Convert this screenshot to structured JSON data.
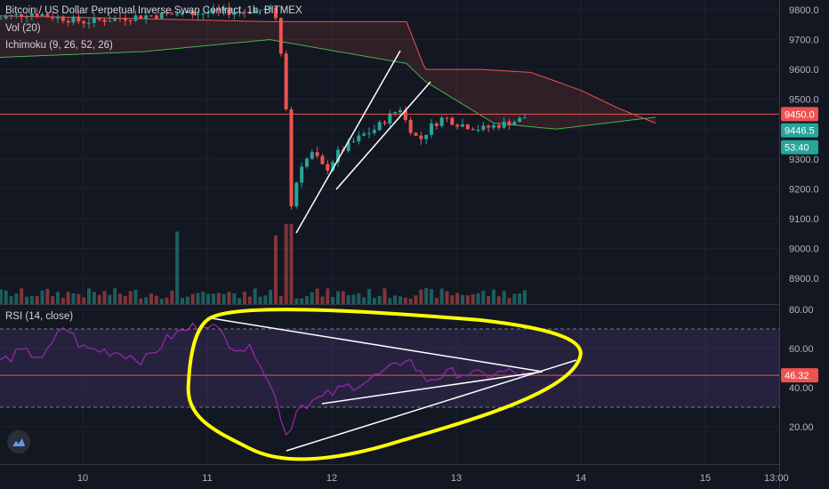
{
  "header": {
    "symbol_line": "Bitcoin / US Dollar Perpetual Inverse Swap Contract, 1h, BITMEX",
    "vol_line": "Vol (20)",
    "ichimoku_line": "Ichimoku (9, 26, 52, 26)"
  },
  "rsi_header": "RSI (14, close)",
  "colors": {
    "background": "#131722",
    "bull": "#26a69a",
    "bear": "#ef5350",
    "rsi_line": "#9c27b0",
    "rsi_band": "#3b1e4a",
    "ichimoku_span_a": "#4caf50",
    "ichimoku_span_b": "#ef5350",
    "annotation": "#ffff00",
    "trendline": "#ffffff",
    "last_price_box": "#ef5350",
    "current_price_box": "#26a69a"
  },
  "price_badges": {
    "last": "9450.0",
    "current": "9446.5",
    "countdown": "53:40"
  },
  "rsi_badge": "46.32",
  "chart_data": [
    {
      "type": "candlestick",
      "title": "Bitcoin / US Dollar Perpetual Inverse Swap Contract, 1h, BITMEX",
      "xlabel": "",
      "ylabel": "",
      "x_ticks": [
        "10",
        "11",
        "12",
        "13",
        "14",
        "15",
        "13:00"
      ],
      "y_ticks": [
        "9800.0",
        "9700.0",
        "9600.0",
        "9500.0",
        "9400.0",
        "9300.0",
        "9200.0",
        "9100.0",
        "9000.0",
        "8900.0"
      ],
      "ylim": [
        8850,
        9850
      ],
      "last_price": 9450.0,
      "current_price": 9446.5,
      "close_path": [
        {
          "t": 11.55,
          "v": 9780
        },
        {
          "t": 11.6,
          "v": 9640
        },
        {
          "t": 11.63,
          "v": 9520
        },
        {
          "t": 11.66,
          "v": 9060
        },
        {
          "t": 11.68,
          "v": 9160
        },
        {
          "t": 11.75,
          "v": 9280
        },
        {
          "t": 11.85,
          "v": 9320
        },
        {
          "t": 11.95,
          "v": 9260
        },
        {
          "t": 12.05,
          "v": 9320
        },
        {
          "t": 12.15,
          "v": 9350
        },
        {
          "t": 12.25,
          "v": 9380
        },
        {
          "t": 12.35,
          "v": 9400
        },
        {
          "t": 12.45,
          "v": 9440
        },
        {
          "t": 12.55,
          "v": 9470
        },
        {
          "t": 12.6,
          "v": 9420
        },
        {
          "t": 12.7,
          "v": 9360
        },
        {
          "t": 12.8,
          "v": 9410
        },
        {
          "t": 12.9,
          "v": 9440
        },
        {
          "t": 13.0,
          "v": 9420
        },
        {
          "t": 13.1,
          "v": 9410
        },
        {
          "t": 13.2,
          "v": 9400
        },
        {
          "t": 13.3,
          "v": 9410
        },
        {
          "t": 13.4,
          "v": 9420
        },
        {
          "t": 13.5,
          "v": 9430
        },
        {
          "t": 13.58,
          "v": 9446.5
        }
      ],
      "ichimoku_span_a": [
        {
          "t": 9.3,
          "v": 9640
        },
        {
          "t": 10.5,
          "v": 9660
        },
        {
          "t": 11.0,
          "v": 9680
        },
        {
          "t": 11.5,
          "v": 9700
        },
        {
          "t": 12.6,
          "v": 9620
        },
        {
          "t": 12.75,
          "v": 9560
        },
        {
          "t": 13.3,
          "v": 9420
        },
        {
          "t": 13.8,
          "v": 9400
        },
        {
          "t": 14.6,
          "v": 9440
        }
      ],
      "ichimoku_span_b": [
        {
          "t": 9.3,
          "v": 9780
        },
        {
          "t": 10.5,
          "v": 9770
        },
        {
          "t": 11.5,
          "v": 9760
        },
        {
          "t": 12.6,
          "v": 9760
        },
        {
          "t": 12.75,
          "v": 9600
        },
        {
          "t": 13.2,
          "v": 9600
        },
        {
          "t": 13.6,
          "v": 9590
        },
        {
          "t": 14.0,
          "v": 9530
        },
        {
          "t": 14.3,
          "v": 9470
        },
        {
          "t": 14.6,
          "v": 9420
        }
      ],
      "volume_spike_at": [
        10.75,
        11.55,
        11.65
      ]
    },
    {
      "type": "line",
      "title": "RSI (14, close)",
      "x_ticks": [
        "10",
        "11",
        "12",
        "13",
        "14",
        "15",
        "13:00"
      ],
      "y_ticks": [
        "80.00",
        "60.00",
        "40.00",
        "20.00"
      ],
      "ylim": [
        10,
        85
      ],
      "bands": [
        30,
        70
      ],
      "last_value": 46.32,
      "series": [
        {
          "values": [
            {
              "t": 9.3,
              "v": 52
            },
            {
              "t": 9.5,
              "v": 58
            },
            {
              "t": 9.7,
              "v": 56
            },
            {
              "t": 9.85,
              "v": 72
            },
            {
              "t": 10.0,
              "v": 60
            },
            {
              "t": 10.3,
              "v": 58
            },
            {
              "t": 10.5,
              "v": 54
            },
            {
              "t": 10.7,
              "v": 66
            },
            {
              "t": 11.0,
              "v": 74
            },
            {
              "t": 11.2,
              "v": 62
            },
            {
              "t": 11.4,
              "v": 58
            },
            {
              "t": 11.55,
              "v": 34
            },
            {
              "t": 11.66,
              "v": 12
            },
            {
              "t": 11.7,
              "v": 30
            },
            {
              "t": 11.9,
              "v": 34
            },
            {
              "t": 12.1,
              "v": 40
            },
            {
              "t": 12.3,
              "v": 44
            },
            {
              "t": 12.5,
              "v": 50
            },
            {
              "t": 12.6,
              "v": 56
            },
            {
              "t": 12.75,
              "v": 44
            },
            {
              "t": 13.0,
              "v": 48
            },
            {
              "t": 13.2,
              "v": 46
            },
            {
              "t": 13.4,
              "v": 48
            },
            {
              "t": 13.58,
              "v": 46.32
            }
          ]
        }
      ]
    }
  ]
}
